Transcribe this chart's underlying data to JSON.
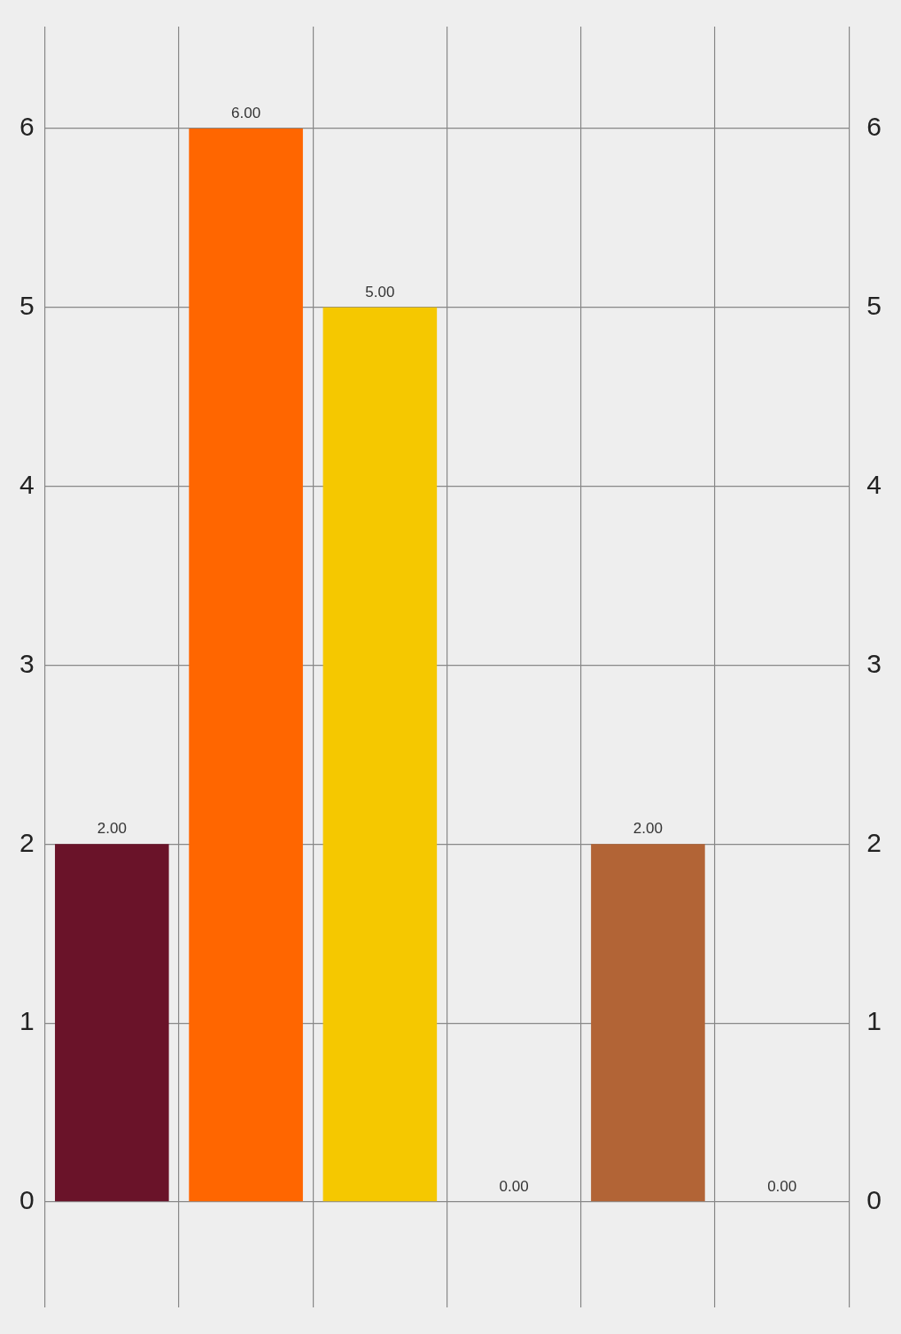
{
  "chart_data": {
    "type": "bar",
    "categories": [
      null,
      null,
      null,
      null,
      null,
      null
    ],
    "values": [
      2,
      6,
      5,
      0,
      2,
      0
    ],
    "colors": [
      "#6a1329",
      "#ff6600",
      "#f5c800",
      "#4a7ab8",
      "#b26436",
      "#7a9a3a"
    ],
    "value_labels": [
      "2.00",
      "6.00",
      "5.00",
      "0.00",
      "2.00",
      "0.00"
    ],
    "ylim": [
      -0.59,
      6.57
    ],
    "yticks": [
      0,
      1,
      2,
      3,
      4,
      5,
      6
    ],
    "y2lim": [
      -0.59,
      6.57
    ],
    "y2ticks": [
      0,
      1,
      2,
      3,
      4,
      5,
      6
    ],
    "grid": true,
    "legend": false
  }
}
